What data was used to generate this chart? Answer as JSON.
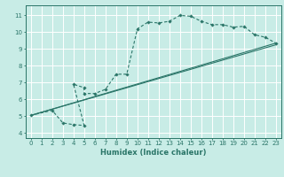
{
  "xlabel": "Humidex (Indice chaleur)",
  "bg_color": "#c8ece6",
  "line_color": "#2a7568",
  "grid_color": "#b0d8d0",
  "xlim": [
    -0.5,
    23.5
  ],
  "ylim": [
    3.7,
    11.6
  ],
  "xticks": [
    0,
    1,
    2,
    3,
    4,
    5,
    6,
    7,
    8,
    9,
    10,
    11,
    12,
    13,
    14,
    15,
    16,
    17,
    18,
    19,
    20,
    21,
    22,
    23
  ],
  "yticks": [
    4,
    5,
    6,
    7,
    8,
    9,
    10,
    11
  ],
  "curve_x": [
    0,
    2,
    3,
    4,
    5,
    4,
    5,
    5,
    6,
    7,
    8,
    9,
    10,
    11,
    12,
    13,
    14,
    15,
    16,
    17,
    18,
    19,
    20,
    21,
    22,
    23
  ],
  "curve_y": [
    5.05,
    5.35,
    4.6,
    4.5,
    4.45,
    6.9,
    6.7,
    6.35,
    6.35,
    6.6,
    7.5,
    7.5,
    10.2,
    10.6,
    10.55,
    10.65,
    11.0,
    10.95,
    10.65,
    10.45,
    10.45,
    10.3,
    10.35,
    9.85,
    9.7,
    9.35
  ],
  "line1_x": [
    0,
    23
  ],
  "line1_y": [
    5.05,
    9.35
  ],
  "line2_x": [
    0,
    23
  ],
  "line2_y": [
    5.05,
    9.25
  ]
}
